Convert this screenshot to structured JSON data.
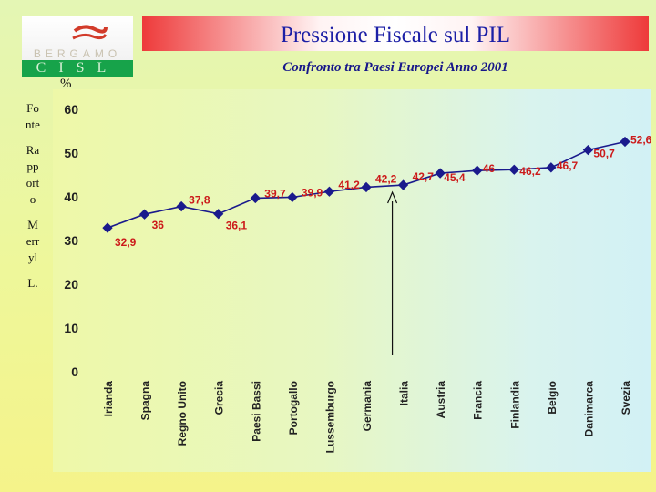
{
  "header": {
    "title": "Pressione Fiscale sul PIL",
    "subtitle": "Confronto tra Paesi Europei Anno 2001",
    "unit_label": "%"
  },
  "logo": {
    "city": "BERGAMO",
    "org": "CISL"
  },
  "source_note": "Fonte Rapporto Merryl L.",
  "colors": {
    "series": "#1a1a8c",
    "data_label": "#cc1a1a",
    "title_text": "#1c1fa6",
    "title_band_edge": "#ee3a3a"
  },
  "chart_data": {
    "type": "line",
    "title": "Pressione Fiscale sul PIL",
    "subtitle": "Confronto tra Paesi Europei Anno 2001",
    "ylabel": "%",
    "xlabel": "",
    "ylim": [
      0,
      60
    ],
    "yticks": [
      0,
      10,
      20,
      30,
      40,
      50,
      60
    ],
    "grid": false,
    "legend": "none",
    "categories": [
      "Irianda",
      "Spagna",
      "Regno Unito",
      "Grecia",
      "Paesi Bassi",
      "Portogallo",
      "Lussemburgo",
      "Germania",
      "Italia",
      "Austria",
      "Francia",
      "Finlandia",
      "Belgio",
      "Danimarca",
      "Svezia"
    ],
    "values": [
      32.9,
      36,
      37.8,
      36.1,
      39.7,
      39.9,
      41.2,
      42.2,
      42.7,
      45.4,
      46,
      46.2,
      46.7,
      50.7,
      52.6
    ],
    "data_labels": [
      "32,9",
      "36",
      "37,8",
      "36,1",
      "39,7",
      "39,9",
      "41,2",
      "42,2",
      "42,7",
      "45,4",
      "46",
      "46,2",
      "46,7",
      "50,7",
      "52,6"
    ],
    "annotation": {
      "type": "arrow",
      "target_category": "Italia"
    }
  }
}
